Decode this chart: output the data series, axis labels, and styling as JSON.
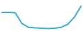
{
  "x": [
    0,
    1,
    2,
    3,
    4,
    5,
    6,
    7,
    8,
    9,
    10,
    11,
    12
  ],
  "y": [
    8.0,
    8.0,
    7.9,
    4.5,
    3.2,
    3.0,
    2.9,
    2.8,
    2.9,
    3.2,
    4.2,
    6.5,
    10.0
  ],
  "line_color": "#3aa8d8",
  "linewidth": 1.4,
  "background_color": "#ffffff",
  "ylim": [
    2.0,
    12.0
  ],
  "xlim": [
    -0.3,
    12.3
  ]
}
